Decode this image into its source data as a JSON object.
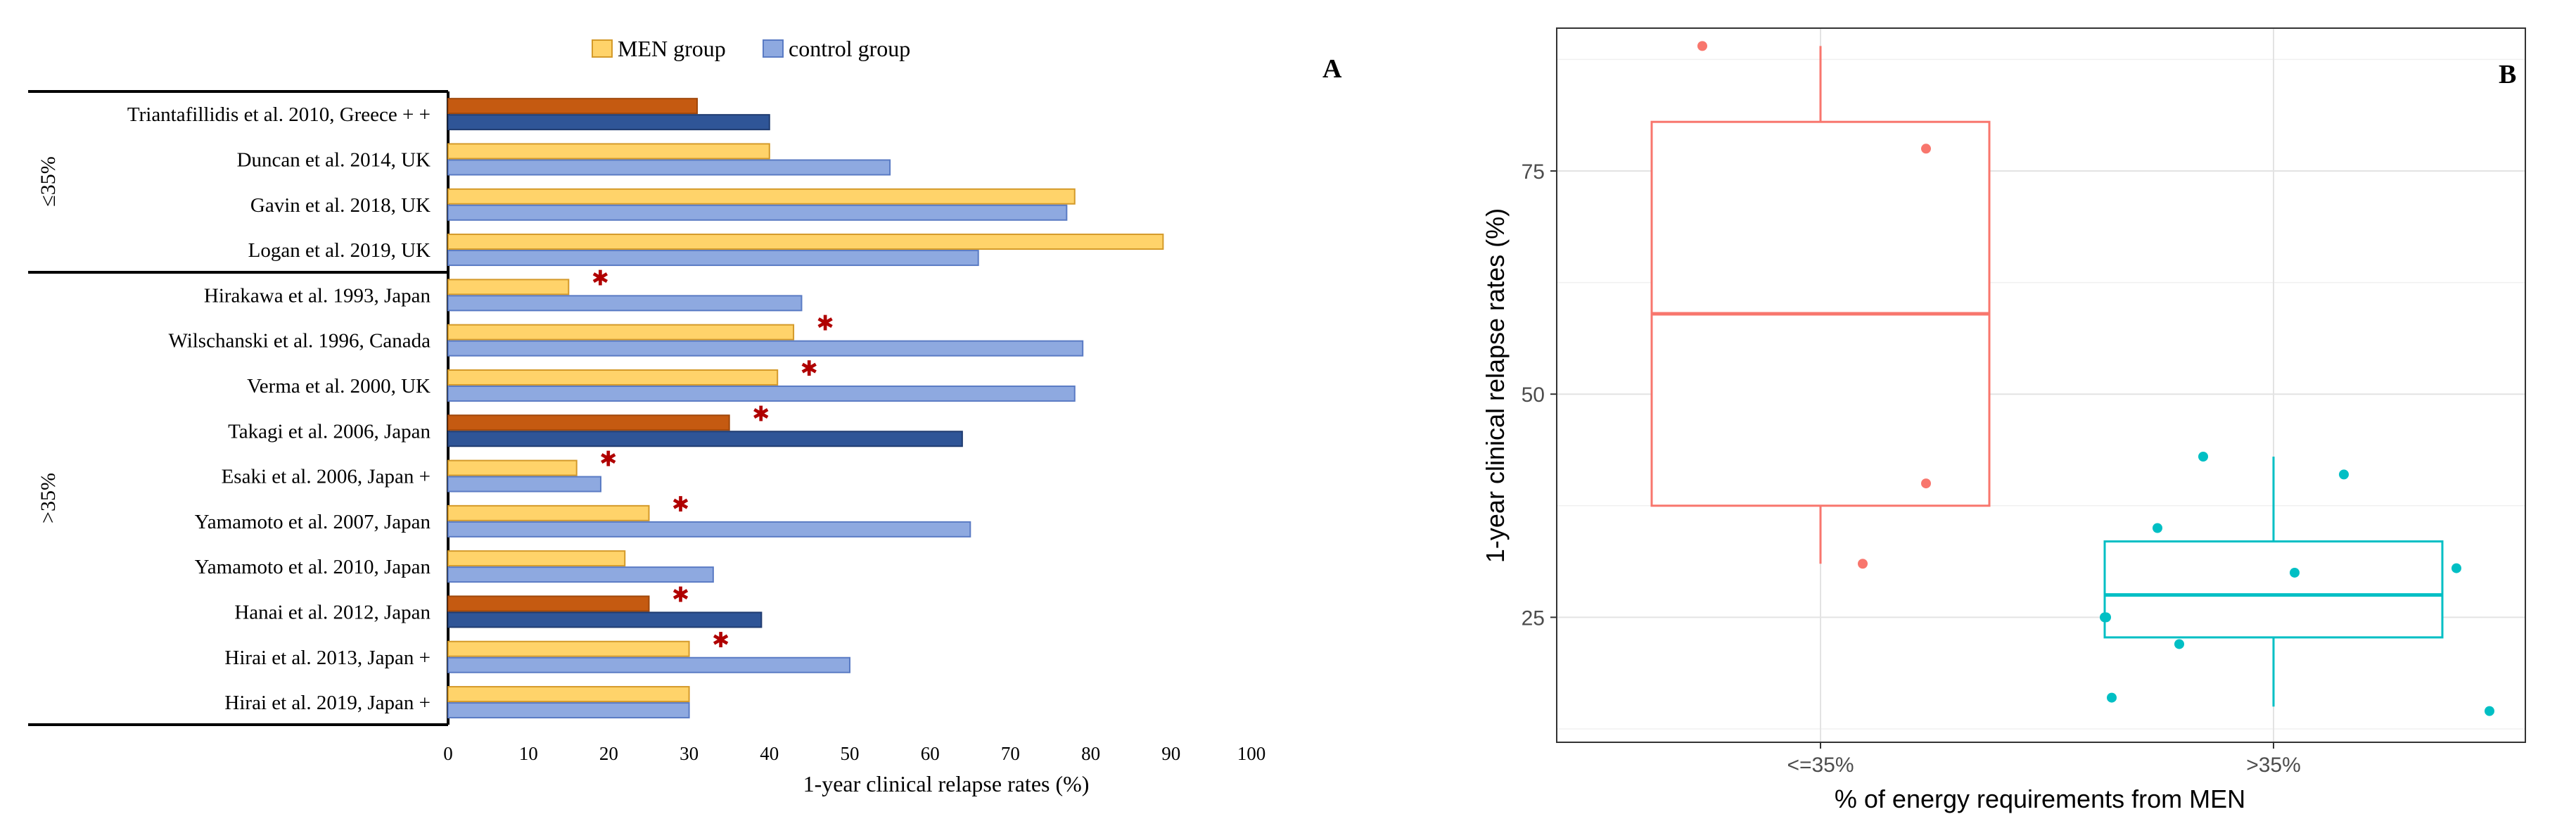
{
  "chart_data": [
    {
      "panel_label": "A",
      "type": "bar",
      "orientation": "horizontal",
      "xlabel": "1-year clinical relapse rates (%)",
      "xlim": [
        0,
        100
      ],
      "xticks": [
        "0",
        "10",
        "20",
        "30",
        "40",
        "50",
        "60",
        "70",
        "80",
        "90",
        "100"
      ],
      "legend": [
        "MEN group",
        "control group"
      ],
      "legend_position": "top-center",
      "groups": [
        {
          "label": "≤35%",
          "count": 4
        },
        {
          "label": ">35%",
          "count": 10
        }
      ],
      "categories": [
        "Triantafillidis et al. 2010, Greece + +",
        "Duncan et al. 2014, UK",
        "Gavin et al. 2018, UK",
        "Logan et al. 2019, UK",
        "Hirakawa et al. 1993, Japan",
        "Wilschanski et al. 1996, Canada",
        "Verma et al. 2000, UK",
        "Takagi et al. 2006, Japan",
        "Esaki et al. 2006, Japan +",
        "Yamamoto et al. 2007, Japan",
        "Yamamoto et al. 2010, Japan",
        "Hanai et al. 2012, Japan",
        "Hirai et al. 2013, Japan +",
        "Hirai et al. 2019, Japan +"
      ],
      "series": [
        {
          "name": "MEN group",
          "values": [
            31,
            40,
            78,
            89,
            15,
            43,
            41,
            35,
            16,
            25,
            22,
            25,
            30,
            30
          ]
        },
        {
          "name": "control group",
          "values": [
            40,
            55,
            77,
            66,
            44,
            79,
            78,
            64,
            19,
            65,
            33,
            39,
            50,
            30
          ]
        }
      ],
      "highlighted_studies": [
        0,
        7,
        11
      ],
      "significant_marker": "✱",
      "significant_studies": [
        4,
        5,
        6,
        7,
        8,
        9,
        11,
        12
      ]
    },
    {
      "panel_label": "B",
      "type": "boxplot",
      "xlabel": "% of energy requirements from MEN",
      "ylabel": "1-year clinical relapse rates (%)",
      "categories": [
        "<=35%",
        ">35%"
      ],
      "yticks": [
        25,
        50,
        75
      ],
      "ylim": [
        11,
        91
      ],
      "grid": true,
      "boxes": [
        {
          "category": "<=35%",
          "color": "#F8766D",
          "min": 31,
          "q1": 37.5,
          "median": 59,
          "q3": 80.5,
          "max": 89,
          "points": [
            89,
            77.5,
            40,
            31
          ]
        },
        {
          "category": ">35%",
          "color": "#00BFC4",
          "min": 15,
          "q1": 22.75,
          "median": 27.5,
          "q3": 33.5,
          "max": 43,
          "points": [
            43,
            35,
            25,
            22,
            16,
            41,
            30,
            30.5,
            25,
            14.5
          ]
        }
      ]
    }
  ]
}
